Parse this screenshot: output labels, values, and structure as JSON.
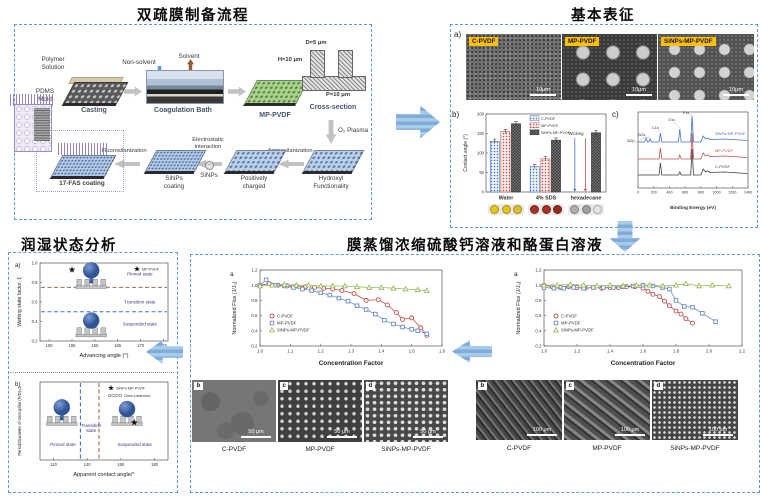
{
  "page": {
    "background": "#ffffff",
    "panel_border_color": "#5B9BD5",
    "big_arrow_color": "#7FACD9"
  },
  "panels": {
    "prep": {
      "title": "双疏膜制备流程",
      "labels": {
        "polymer_solution": "Polymer\nSolution",
        "pdms_mold": "PDMS\nMold",
        "casting": "Casting",
        "non_solvent": "Non-solvent",
        "solvent": "Solvent",
        "coagulation_bath": "Coagulation Bath",
        "mp_pvdf": "MP-PVDF",
        "cross_section": "Cross-section",
        "dim_d": "D=5 μm",
        "dim_h": "H=10 μm",
        "dim_p": "P=10 μm",
        "o2_plasma": "O₂ Plasma",
        "hydroxyl": "Hydroxyl\nFunctionality",
        "aminosilanization": "Aminosilanization",
        "positively_charged": "Positively\ncharged",
        "electrostatic": "Electrostatic\ninteraction",
        "charge_minus": "−",
        "sinps": "SiNPs",
        "sinps_coating": "SiNPs\ncoating",
        "fluorosilanization": "Fluorosilanization",
        "fas_coating": "17-FAS coating"
      }
    },
    "characterization": {
      "title": "基本表征",
      "panel_a": "a)",
      "panel_b": "b)",
      "panel_c": "c)",
      "sem_images": [
        {
          "label": "C-PVDF",
          "scale": "10μm"
        },
        {
          "label": "MP-PVDF",
          "scale": "10μm"
        },
        {
          "label": "SiNPs-MP-PVDF",
          "scale": "10μm"
        }
      ]
    },
    "wetting": {
      "title": "润湿状态分析"
    },
    "distillation": {
      "title": "膜蒸馏浓缩硫酸钙溶液和酪蛋白溶液",
      "left": {
        "sem": [
          {
            "letter": "b",
            "label": "C-PVDF",
            "scale": "50 μm"
          },
          {
            "letter": "c",
            "label": "MP-PVDF",
            "scale": "50 μm"
          },
          {
            "letter": "d",
            "label": "SiNPs-MP-PVDF",
            "scale": "50 μm"
          }
        ]
      },
      "right": {
        "sem": [
          {
            "letter": "b",
            "label": "C-PVDF",
            "scale": "100 μm"
          },
          {
            "letter": "c",
            "label": "MP-PVDF",
            "scale": "100 μm"
          },
          {
            "letter": "d",
            "label": "SiNPs-MP-PVDF",
            "scale": "100 μm"
          }
        ]
      }
    }
  },
  "chart_data": [
    {
      "id": "contact-bar",
      "type": "bar",
      "corner": "b)",
      "ylabel": "Contact angle (°)",
      "ylim": [
        0,
        200
      ],
      "yticks": [
        0,
        50,
        100,
        150,
        200
      ],
      "categories": [
        "Water",
        "4% SDS",
        "hexadecane"
      ],
      "series": [
        {
          "name": "C-PVDF",
          "color": "#4472C4",
          "fill_bg": "#EDF2FB",
          "pattern": "dots",
          "values": [
            130,
            65,
            null
          ]
        },
        {
          "name": "MP-PVDF",
          "color": "#C0504D",
          "fill_bg": "#F9ECEB",
          "pattern": "dots",
          "values": [
            155,
            85,
            null
          ]
        },
        {
          "name": "SiNPs-MP-PVDF",
          "color": "#3f3f3f",
          "fill_bg": "#777777",
          "pattern": "checker",
          "values": [
            175,
            133,
            152
          ]
        }
      ],
      "wicking_label": "Wicking",
      "droplets": [
        {
          "liquid": "Water",
          "colors": [
            "#E3C41D",
            "#E3C41D",
            "#DDBE2E"
          ]
        },
        {
          "liquid": "4% SDS",
          "colors": [
            "#A93226",
            "#A93226",
            "#922B20"
          ]
        },
        {
          "liquid": "hexadecane",
          "colors": [
            "#ADADAD",
            "#A0A0A0",
            "#E4E4E4"
          ]
        }
      ]
    },
    {
      "id": "xps",
      "type": "line",
      "corner": "c)",
      "xlabel": "Binding Energy (eV)",
      "xlim": [
        0,
        1400
      ],
      "xticks": [
        0,
        200,
        400,
        600,
        800,
        1000,
        1200,
        1400
      ],
      "peaks": [
        {
          "label": "Si2p",
          "x": 103,
          "lx": 5,
          "ly": 34
        },
        {
          "label": "Si2s",
          "x": 154,
          "lx": 16,
          "ly": 28
        },
        {
          "label": "C1s",
          "x": 285,
          "lx": 30,
          "ly": 21
        },
        {
          "label": "O1s",
          "x": 532,
          "lx": 46,
          "ly": 13
        },
        {
          "label": "F1s",
          "x": 689,
          "lx": 61,
          "ly": 6
        }
      ],
      "series": [
        {
          "name": "SiNPs-MP-PVDF",
          "color": "#4472C4",
          "base": 34,
          "heights": {
            "Si2p": 4,
            "Si2s": 3,
            "C1s": 9,
            "O1s": 13,
            "F1s": 26,
            "auger": 6
          }
        },
        {
          "name": "MP-PVDF",
          "color": "#C0504D",
          "base": 51,
          "heights": {
            "C1s": 11,
            "O1s": 4,
            "F1s": 26,
            "auger": 6
          }
        },
        {
          "name": "C-PVDF",
          "color": "#3f3f3f",
          "base": 67,
          "heights": {
            "C1s": 12,
            "O1s": 3,
            "F1s": 26,
            "auger": 6
          }
        }
      ]
    },
    {
      "id": "flux-left",
      "type": "line",
      "corner": "a",
      "xlabel": "Concentration Factor",
      "ylabel": "Normalized Flux (J/J₀)",
      "xlim": [
        1.0,
        1.6
      ],
      "xticks": [
        1.0,
        1.1,
        1.2,
        1.3,
        1.4,
        1.5,
        1.6
      ],
      "ylim": [
        0.2,
        1.2
      ],
      "yticks": [
        0.2,
        0.4,
        0.6,
        0.8,
        1.0,
        1.2
      ],
      "series": [
        {
          "name": "C-PVDF",
          "color": "#C0504D",
          "marker": "circle",
          "points": [
            [
              1.0,
              1.0
            ],
            [
              1.03,
              1.02
            ],
            [
              1.06,
              1.0
            ],
            [
              1.09,
              0.99
            ],
            [
              1.12,
              0.99
            ],
            [
              1.15,
              0.98
            ],
            [
              1.18,
              0.97
            ],
            [
              1.21,
              0.96
            ],
            [
              1.24,
              0.95
            ],
            [
              1.27,
              0.93
            ],
            [
              1.31,
              0.89
            ],
            [
              1.35,
              0.8
            ],
            [
              1.39,
              0.81
            ],
            [
              1.42,
              0.74
            ],
            [
              1.45,
              0.64
            ],
            [
              1.47,
              0.55
            ],
            [
              1.5,
              0.57
            ],
            [
              1.53,
              0.44
            ],
            [
              1.55,
              0.34
            ]
          ]
        },
        {
          "name": "MP-PVDF",
          "color": "#6B8CC7",
          "marker": "square",
          "points": [
            [
              1.0,
              1.0
            ],
            [
              1.02,
              1.07
            ],
            [
              1.05,
              1.0
            ],
            [
              1.08,
              0.99
            ],
            [
              1.11,
              0.97
            ],
            [
              1.14,
              0.95
            ],
            [
              1.17,
              0.93
            ],
            [
              1.2,
              0.9
            ],
            [
              1.23,
              0.87
            ],
            [
              1.26,
              0.83
            ],
            [
              1.29,
              0.79
            ],
            [
              1.32,
              0.73
            ],
            [
              1.35,
              0.68
            ],
            [
              1.38,
              0.62
            ],
            [
              1.41,
              0.54
            ],
            [
              1.44,
              0.49
            ],
            [
              1.47,
              0.45
            ],
            [
              1.5,
              0.42
            ],
            [
              1.52,
              0.4
            ],
            [
              1.55,
              0.36
            ]
          ]
        },
        {
          "name": "SiNPs-MP-PVDF",
          "color": "#9BBB59",
          "marker": "triangle",
          "points": [
            [
              1.0,
              0.99
            ],
            [
              1.04,
              1.0
            ],
            [
              1.08,
              1.01
            ],
            [
              1.12,
              1.0
            ],
            [
              1.16,
              1.0
            ],
            [
              1.2,
              0.99
            ],
            [
              1.24,
              0.99
            ],
            [
              1.28,
              0.99
            ],
            [
              1.32,
              0.98
            ],
            [
              1.36,
              0.97
            ],
            [
              1.4,
              0.97
            ],
            [
              1.44,
              0.96
            ],
            [
              1.48,
              0.95
            ],
            [
              1.52,
              0.94
            ],
            [
              1.55,
              0.93
            ]
          ]
        }
      ]
    },
    {
      "id": "flux-right",
      "type": "line",
      "corner": "a",
      "xlabel": "Concentration Factor",
      "ylabel": "Normalized Flux (J/J₀)",
      "xlim": [
        1.0,
        2.2
      ],
      "xticks": [
        1.0,
        1.2,
        1.4,
        1.6,
        1.8,
        2.0,
        2.2
      ],
      "ylim": [
        0.2,
        1.2
      ],
      "yticks": [
        0.2,
        0.4,
        0.6,
        0.8,
        1.0,
        1.2
      ],
      "series": [
        {
          "name": "C-PVDF",
          "color": "#C0504D",
          "marker": "circle",
          "points": [
            [
              1.0,
              1.0
            ],
            [
              1.05,
              0.98
            ],
            [
              1.1,
              0.97
            ],
            [
              1.15,
              0.98
            ],
            [
              1.2,
              0.97
            ],
            [
              1.25,
              0.96
            ],
            [
              1.3,
              0.97
            ],
            [
              1.35,
              0.96
            ],
            [
              1.4,
              0.97
            ],
            [
              1.45,
              0.97
            ],
            [
              1.5,
              0.98
            ],
            [
              1.55,
              0.98
            ],
            [
              1.6,
              0.96
            ],
            [
              1.63,
              0.92
            ],
            [
              1.66,
              0.88
            ],
            [
              1.7,
              0.85
            ],
            [
              1.73,
              0.79
            ],
            [
              1.76,
              0.73
            ],
            [
              1.8,
              0.66
            ],
            [
              1.83,
              0.62
            ],
            [
              1.86,
              0.56
            ],
            [
              1.9,
              0.5
            ]
          ]
        },
        {
          "name": "MP-PVDF",
          "color": "#6B8CC7",
          "marker": "square",
          "points": [
            [
              1.0,
              0.97
            ],
            [
              1.06,
              0.96
            ],
            [
              1.12,
              0.96
            ],
            [
              1.18,
              0.97
            ],
            [
              1.24,
              0.96
            ],
            [
              1.3,
              0.97
            ],
            [
              1.36,
              0.97
            ],
            [
              1.42,
              0.97
            ],
            [
              1.48,
              0.98
            ],
            [
              1.54,
              0.99
            ],
            [
              1.6,
              1.0
            ],
            [
              1.66,
              0.99
            ],
            [
              1.72,
              0.97
            ],
            [
              1.76,
              0.95
            ],
            [
              1.8,
              0.8
            ],
            [
              1.85,
              0.72
            ],
            [
              1.9,
              0.71
            ],
            [
              1.96,
              0.63
            ],
            [
              2.04,
              0.52
            ]
          ]
        },
        {
          "name": "SiNPs-MP-PVDF",
          "color": "#9BBB59",
          "marker": "triangle",
          "points": [
            [
              1.0,
              1.0
            ],
            [
              1.08,
              1.0
            ],
            [
              1.16,
              1.01
            ],
            [
              1.24,
              1.0
            ],
            [
              1.32,
              0.99
            ],
            [
              1.4,
              1.0
            ],
            [
              1.48,
              0.99
            ],
            [
              1.56,
              1.0
            ],
            [
              1.64,
              1.0
            ],
            [
              1.72,
              0.99
            ],
            [
              1.8,
              1.0
            ],
            [
              1.86,
              1.02
            ],
            [
              1.94,
              0.99
            ],
            [
              2.02,
              1.0
            ],
            [
              2.12,
              0.99
            ]
          ]
        }
      ]
    },
    {
      "id": "wet-a",
      "type": "scatter",
      "corner": "a)",
      "xlabel": "Advancing angle (°)",
      "ylabel": "Wetting state factor, ξ",
      "xlim": [
        148,
        176
      ],
      "xticks": [
        150,
        155,
        160,
        165,
        170,
        175
      ],
      "ylim": [
        0.2,
        1.0
      ],
      "yticks": [
        0.2,
        0.4,
        0.6,
        0.8,
        1.0
      ],
      "hlines": [
        {
          "y": 0.75,
          "color": "#9C6B5A"
        },
        {
          "y": 0.5,
          "color": "#4472C4"
        }
      ],
      "regions": [
        {
          "label": "Pinned state",
          "fx": 0.78,
          "fy": 0.16
        },
        {
          "label": "Transition state",
          "fx": 0.78,
          "fy": 0.52
        },
        {
          "label": "Suspended state",
          "fx": 0.78,
          "fy": 0.8
        }
      ],
      "points": [
        {
          "x": 155,
          "y": 0.93,
          "marker": "star"
        }
      ],
      "legend": [
        {
          "marker": "star",
          "label": "MP-PVDF"
        }
      ],
      "droplets": [
        {
          "type": "pinned",
          "fx": 0.4,
          "fy": 0.21
        },
        {
          "type": "suspended",
          "fx": 0.4,
          "fy": 0.83
        }
      ]
    },
    {
      "id": "wet-b",
      "type": "scatter",
      "corner": "b)",
      "xlabel": "Apparent contact angle/°",
      "ylabel": "Period/Diameter of micropillar (P/D)=2",
      "xlim": [
        112,
        188
      ],
      "xticks": [
        120,
        140,
        160,
        180
      ],
      "ylim": [
        0,
        1
      ],
      "yticks": [],
      "vlines": [
        {
          "x": 136,
          "color": "#4472C4"
        },
        {
          "x": 147,
          "color": "#9C6B5A"
        }
      ],
      "regions": [
        {
          "label": "Pinned state",
          "fx": 0.18,
          "fy": 0.82
        },
        {
          "label": "Transition\nstate",
          "fx": 0.4,
          "fy": 0.58
        },
        {
          "label": "Suspended state",
          "fx": 0.74,
          "fy": 0.82
        }
      ],
      "points": [
        {
          "x": 168,
          "y": 0.48,
          "marker": "star"
        }
      ],
      "legend": [
        {
          "marker": "star",
          "label": "SiNPs-MP-PVDF"
        },
        {
          "marker": "circles",
          "label": "Omni-patterned"
        }
      ],
      "droplets": [
        {
          "type": "pinned",
          "fx": 0.17,
          "fy": 0.44
        },
        {
          "type": "suspended",
          "fx": 0.68,
          "fy": 0.44
        }
      ]
    }
  ]
}
